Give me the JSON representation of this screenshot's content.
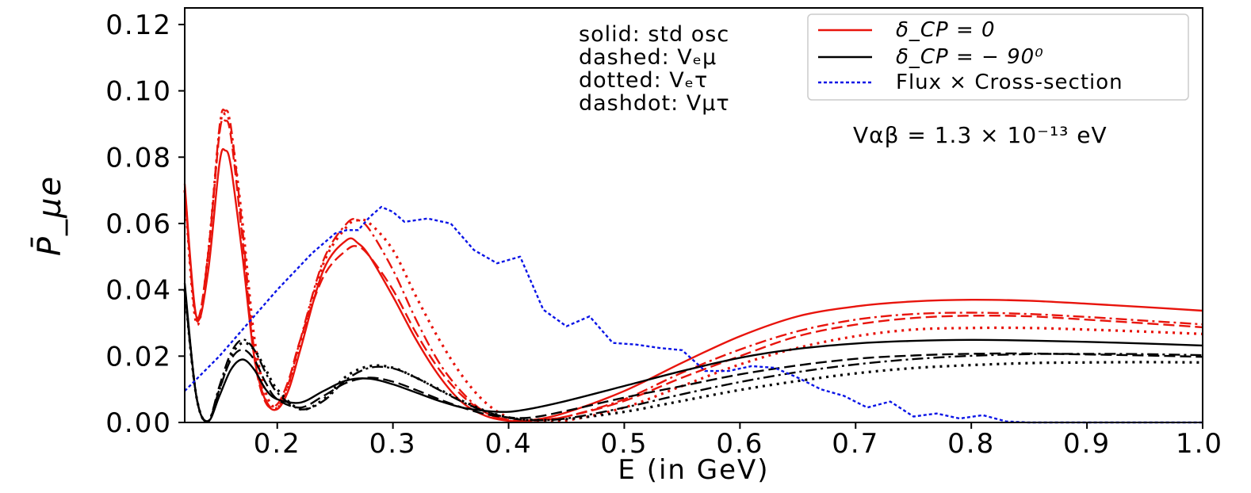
{
  "chart_data": {
    "type": "line",
    "xlabel": "E (in GeV)",
    "ylabel": "P̄_μe",
    "xlim": [
      0.12,
      1.0
    ],
    "ylim": [
      0.0,
      0.125
    ],
    "xticks": [
      0.2,
      0.3,
      0.4,
      0.5,
      0.6,
      0.7,
      0.8,
      0.9,
      1.0
    ],
    "xtick_labels": [
      "0.2",
      "0.3",
      "0.4",
      "0.5",
      "0.6",
      "0.7",
      "0.8",
      "0.9",
      "1.0"
    ],
    "yticks": [
      0.0,
      0.02,
      0.04,
      0.06,
      0.08,
      0.1,
      0.12
    ],
    "ytick_labels": [
      "0.00",
      "0.02",
      "0.04",
      "0.06",
      "0.08",
      "0.10",
      "0.12"
    ],
    "grid": false,
    "legend_position": "top-right",
    "legend": [
      {
        "label": "δ_CP = 0",
        "color": "#e8140c",
        "style": "solid"
      },
      {
        "label": "δ_CP = − 90⁰",
        "color": "#000000",
        "style": "solid"
      },
      {
        "label": "Flux × Cross-section",
        "color": "#0a14e6",
        "style": "dotted"
      }
    ],
    "annotations": {
      "line_styles": [
        "solid: std osc",
        "dashed: Vₑμ",
        "dotted: Vₑτ",
        "dashdot: Vμτ"
      ],
      "potential": "Vαβ = 1.3 × 10⁻¹³ eV"
    },
    "series": [
      {
        "delta": 0,
        "style": "solid",
        "color": "#e8140c",
        "x": [
          0.12,
          0.13,
          0.14,
          0.15,
          0.155,
          0.16,
          0.17,
          0.18,
          0.19,
          0.2,
          0.21,
          0.22,
          0.24,
          0.26,
          0.27,
          0.28,
          0.3,
          0.32,
          0.34,
          0.36,
          0.38,
          0.4,
          0.42,
          0.45,
          0.5,
          0.55,
          0.6,
          0.65,
          0.7,
          0.75,
          0.8,
          0.85,
          0.9,
          0.95,
          1.0
        ],
        "y": [
          0.072,
          0.032,
          0.045,
          0.078,
          0.082,
          0.077,
          0.05,
          0.02,
          0.0065,
          0.004,
          0.01,
          0.022,
          0.046,
          0.055,
          0.054,
          0.05,
          0.038,
          0.025,
          0.014,
          0.006,
          0.002,
          0.0005,
          0.0007,
          0.003,
          0.0095,
          0.018,
          0.026,
          0.032,
          0.035,
          0.0365,
          0.037,
          0.0367,
          0.0358,
          0.0348,
          0.0337
        ]
      },
      {
        "delta": 0,
        "style": "dashed",
        "color": "#e8140c",
        "x": [
          0.12,
          0.13,
          0.14,
          0.15,
          0.155,
          0.16,
          0.17,
          0.18,
          0.19,
          0.2,
          0.21,
          0.22,
          0.24,
          0.26,
          0.27,
          0.28,
          0.3,
          0.32,
          0.34,
          0.36,
          0.38,
          0.4,
          0.42,
          0.45,
          0.5,
          0.55,
          0.6,
          0.65,
          0.7,
          0.75,
          0.8,
          0.85,
          0.9,
          0.95,
          1.0
        ],
        "y": [
          0.07,
          0.032,
          0.05,
          0.087,
          0.091,
          0.086,
          0.055,
          0.02,
          0.006,
          0.0055,
          0.013,
          0.025,
          0.044,
          0.052,
          0.053,
          0.05,
          0.04,
          0.027,
          0.016,
          0.008,
          0.003,
          0.0008,
          0.0006,
          0.0018,
          0.0065,
          0.0135,
          0.02,
          0.026,
          0.0295,
          0.0315,
          0.0322,
          0.032,
          0.031,
          0.0299,
          0.0287
        ]
      },
      {
        "delta": 0,
        "style": "dotted",
        "color": "#e8140c",
        "x": [
          0.12,
          0.13,
          0.14,
          0.15,
          0.155,
          0.16,
          0.17,
          0.18,
          0.19,
          0.2,
          0.21,
          0.22,
          0.24,
          0.26,
          0.27,
          0.28,
          0.3,
          0.32,
          0.34,
          0.36,
          0.38,
          0.4,
          0.42,
          0.45,
          0.5,
          0.55,
          0.6,
          0.65,
          0.7,
          0.75,
          0.8,
          0.85,
          0.9,
          0.95,
          1.0
        ],
        "y": [
          0.07,
          0.03,
          0.05,
          0.088,
          0.093,
          0.088,
          0.06,
          0.026,
          0.009,
          0.0045,
          0.011,
          0.024,
          0.048,
          0.059,
          0.061,
          0.06,
          0.052,
          0.038,
          0.025,
          0.014,
          0.006,
          0.0015,
          0.0004,
          0.0006,
          0.0045,
          0.011,
          0.0175,
          0.0225,
          0.026,
          0.028,
          0.0285,
          0.0285,
          0.028,
          0.0274,
          0.0267
        ]
      },
      {
        "delta": 0,
        "style": "dashdot",
        "color": "#e8140c",
        "x": [
          0.12,
          0.13,
          0.14,
          0.15,
          0.155,
          0.16,
          0.17,
          0.18,
          0.19,
          0.2,
          0.21,
          0.22,
          0.24,
          0.26,
          0.27,
          0.28,
          0.3,
          0.32,
          0.34,
          0.36,
          0.38,
          0.4,
          0.42,
          0.45,
          0.5,
          0.55,
          0.6,
          0.65,
          0.7,
          0.75,
          0.8,
          0.85,
          0.9,
          0.95,
          1.0
        ],
        "y": [
          0.07,
          0.031,
          0.05,
          0.089,
          0.094,
          0.089,
          0.058,
          0.022,
          0.007,
          0.0045,
          0.012,
          0.025,
          0.049,
          0.06,
          0.061,
          0.058,
          0.046,
          0.031,
          0.018,
          0.009,
          0.003,
          0.0006,
          0.0005,
          0.0018,
          0.007,
          0.015,
          0.022,
          0.0275,
          0.031,
          0.0327,
          0.0331,
          0.0327,
          0.0318,
          0.0307,
          0.0296
        ]
      },
      {
        "delta": -90,
        "style": "solid",
        "color": "#000000",
        "x": [
          0.12,
          0.13,
          0.14,
          0.15,
          0.16,
          0.17,
          0.18,
          0.19,
          0.2,
          0.22,
          0.24,
          0.26,
          0.28,
          0.3,
          0.32,
          0.34,
          0.36,
          0.38,
          0.4,
          0.42,
          0.45,
          0.5,
          0.55,
          0.6,
          0.65,
          0.7,
          0.75,
          0.8,
          0.85,
          0.9,
          0.95,
          1.0
        ],
        "y": [
          0.042,
          0.008,
          0.0003,
          0.008,
          0.016,
          0.019,
          0.016,
          0.01,
          0.007,
          0.006,
          0.0095,
          0.0127,
          0.0132,
          0.0115,
          0.009,
          0.0065,
          0.0045,
          0.0035,
          0.0032,
          0.0042,
          0.0065,
          0.011,
          0.0155,
          0.0195,
          0.0222,
          0.0238,
          0.0246,
          0.0249,
          0.0247,
          0.0243,
          0.0238,
          0.0232
        ]
      },
      {
        "delta": -90,
        "style": "dashed",
        "color": "#000000",
        "x": [
          0.12,
          0.13,
          0.14,
          0.15,
          0.16,
          0.17,
          0.18,
          0.19,
          0.2,
          0.22,
          0.24,
          0.26,
          0.28,
          0.3,
          0.32,
          0.34,
          0.36,
          0.38,
          0.4,
          0.42,
          0.45,
          0.5,
          0.55,
          0.6,
          0.65,
          0.7,
          0.75,
          0.8,
          0.85,
          0.9,
          0.95,
          1.0
        ],
        "y": [
          0.04,
          0.008,
          0.0003,
          0.01,
          0.019,
          0.022,
          0.019,
          0.012,
          0.007,
          0.0045,
          0.008,
          0.012,
          0.0135,
          0.0123,
          0.0098,
          0.007,
          0.0045,
          0.0025,
          0.0015,
          0.0015,
          0.0035,
          0.0075,
          0.011,
          0.0145,
          0.0172,
          0.0192,
          0.0202,
          0.0207,
          0.0208,
          0.0205,
          0.0202,
          0.0198
        ]
      },
      {
        "delta": -90,
        "style": "dotted",
        "color": "#000000",
        "x": [
          0.12,
          0.13,
          0.14,
          0.15,
          0.16,
          0.17,
          0.18,
          0.19,
          0.2,
          0.22,
          0.24,
          0.26,
          0.28,
          0.3,
          0.32,
          0.34,
          0.36,
          0.38,
          0.4,
          0.42,
          0.45,
          0.5,
          0.55,
          0.6,
          0.65,
          0.7,
          0.75,
          0.8,
          0.85,
          0.9,
          0.95,
          1.0
        ],
        "y": [
          0.04,
          0.008,
          0.0003,
          0.01,
          0.02,
          0.024,
          0.022,
          0.016,
          0.01,
          0.004,
          0.007,
          0.014,
          0.017,
          0.0165,
          0.0135,
          0.01,
          0.0065,
          0.0035,
          0.0015,
          0.0008,
          0.001,
          0.0032,
          0.0065,
          0.0098,
          0.0125,
          0.0148,
          0.0164,
          0.0173,
          0.0179,
          0.0181,
          0.0182,
          0.0181
        ]
      },
      {
        "delta": -90,
        "style": "dashdot",
        "color": "#000000",
        "x": [
          0.12,
          0.13,
          0.14,
          0.15,
          0.16,
          0.17,
          0.18,
          0.19,
          0.2,
          0.22,
          0.24,
          0.26,
          0.28,
          0.3,
          0.32,
          0.34,
          0.36,
          0.38,
          0.4,
          0.42,
          0.45,
          0.5,
          0.55,
          0.6,
          0.65,
          0.7,
          0.75,
          0.8,
          0.85,
          0.9,
          0.95,
          1.0
        ],
        "y": [
          0.04,
          0.008,
          0.0003,
          0.011,
          0.021,
          0.025,
          0.022,
          0.015,
          0.009,
          0.004,
          0.0065,
          0.013,
          0.0165,
          0.0163,
          0.0135,
          0.0098,
          0.0062,
          0.0033,
          0.0014,
          0.0007,
          0.0012,
          0.0045,
          0.0085,
          0.0122,
          0.0152,
          0.0175,
          0.0191,
          0.0201,
          0.0206,
          0.0207,
          0.0206,
          0.0203
        ]
      },
      {
        "name": "Flux × Cross-section",
        "style": "dotted-blue",
        "color": "#0a14e6",
        "x": [
          0.12,
          0.15,
          0.18,
          0.2,
          0.23,
          0.25,
          0.26,
          0.27,
          0.28,
          0.29,
          0.3,
          0.31,
          0.33,
          0.35,
          0.37,
          0.39,
          0.4,
          0.41,
          0.43,
          0.45,
          0.47,
          0.49,
          0.51,
          0.53,
          0.55,
          0.57,
          0.59,
          0.61,
          0.63,
          0.65,
          0.67,
          0.69,
          0.71,
          0.73,
          0.75,
          0.77,
          0.79,
          0.81,
          0.83,
          0.85,
          0.9,
          0.95,
          1.0
        ],
        "y": [
          0.0095,
          0.02,
          0.032,
          0.04,
          0.051,
          0.057,
          0.058,
          0.058,
          0.062,
          0.065,
          0.0635,
          0.0605,
          0.0615,
          0.06,
          0.052,
          0.048,
          0.049,
          0.05,
          0.034,
          0.029,
          0.032,
          0.024,
          0.0235,
          0.0225,
          0.0218,
          0.0155,
          0.0155,
          0.017,
          0.0165,
          0.0135,
          0.01,
          0.008,
          0.0045,
          0.0063,
          0.0018,
          0.0027,
          0.0012,
          0.0022,
          0.0003,
          0.0,
          0.0,
          0.0,
          0.0
        ]
      }
    ]
  }
}
